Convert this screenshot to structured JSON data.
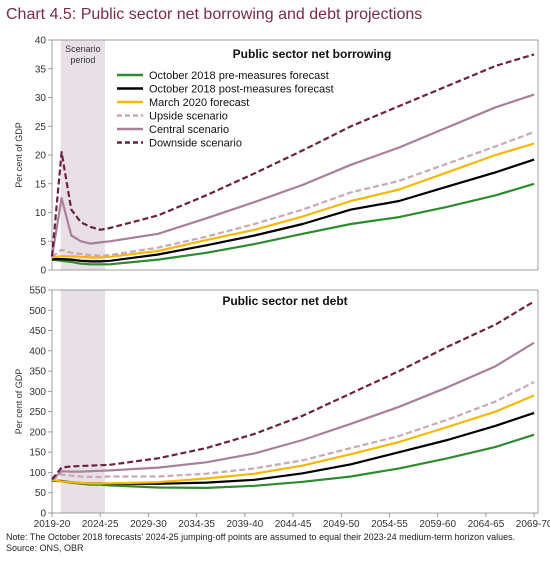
{
  "title": "Chart 4.5: Public sector net borrowing and debt projections",
  "note": "Note: The October 2018 forecasts' 2024-25 jumping-off points are assumed to equal their 2023-24 medium-term horizon values.",
  "source": "Source: ONS, OBR",
  "colors": {
    "title": "#7a2a4a",
    "shade": "#e8e0e6",
    "Oct2018pre": "#2e8b2e",
    "Oct2018post": "#000000",
    "Mar2020": "#f5b800",
    "upside": "#c9a8b8",
    "central": "#a8809a",
    "downside": "#6b2240"
  },
  "scenario_label": [
    "Scenario",
    "period"
  ],
  "x_tick_labels": [
    "2019-20",
    "2024-25",
    "2029-30",
    "2034-35",
    "2039-40",
    "2044-45",
    "2049-50",
    "2054-55",
    "2059-60",
    "2064-65",
    "2069-70"
  ],
  "chart_data": [
    {
      "type": "line",
      "title": "Public sector net borrowing",
      "ylabel": "Per cent of GDP",
      "ylim": [
        0,
        40
      ],
      "yticks": [
        0,
        5,
        10,
        15,
        20,
        25,
        30,
        35,
        40
      ],
      "x": [
        2019,
        2020,
        2021,
        2022,
        2023,
        2024,
        2025,
        2030,
        2035,
        2040,
        2045,
        2050,
        2055,
        2060,
        2065,
        2069
      ],
      "legend_position": "top-center",
      "series": [
        {
          "name": "October 2018 pre-measures forecast",
          "key": "Oct2018pre",
          "dash": false,
          "values": [
            1.8,
            1.6,
            1.4,
            1.1,
            1.0,
            1.0,
            1.0,
            1.8,
            3.0,
            4.5,
            6.3,
            8.0,
            9.2,
            11.0,
            13.0,
            15.0
          ]
        },
        {
          "name": "October 2018 post-measures forecast",
          "key": "Oct2018post",
          "dash": false,
          "values": [
            1.9,
            1.9,
            1.8,
            1.6,
            1.5,
            1.5,
            1.6,
            2.7,
            4.3,
            6.0,
            8.0,
            10.5,
            12.0,
            14.5,
            17.0,
            19.2
          ]
        },
        {
          "name": "March 2020 forecast",
          "key": "Mar2020",
          "dash": false,
          "values": [
            2.2,
            2.4,
            2.4,
            2.3,
            2.2,
            2.2,
            2.3,
            3.3,
            5.2,
            7.0,
            9.3,
            12.0,
            14.0,
            17.0,
            20.0,
            22.0
          ]
        },
        {
          "name": "Upside scenario",
          "key": "upside",
          "dash": true,
          "values": [
            2.3,
            3.5,
            3.0,
            2.8,
            2.6,
            2.5,
            2.6,
            3.9,
            5.8,
            8.0,
            10.5,
            13.5,
            15.5,
            18.5,
            21.5,
            24.0
          ]
        },
        {
          "name": "Central scenario",
          "key": "central",
          "dash": false,
          "values": [
            2.3,
            12.5,
            6.0,
            5.0,
            4.6,
            4.8,
            5.0,
            6.3,
            9.0,
            11.8,
            14.8,
            18.3,
            21.3,
            24.8,
            28.3,
            30.5
          ]
        },
        {
          "name": "Downside scenario",
          "key": "downside",
          "dash": true,
          "values": [
            2.4,
            20.5,
            10.5,
            8.3,
            7.5,
            7.0,
            7.3,
            9.5,
            13.0,
            16.8,
            20.8,
            25.0,
            28.5,
            32.0,
            35.5,
            37.5
          ]
        }
      ]
    },
    {
      "type": "line",
      "title": "Public sector net debt",
      "ylabel": "Per cent of GDP",
      "ylim": [
        0,
        550
      ],
      "yticks": [
        0,
        50,
        100,
        150,
        200,
        250,
        300,
        350,
        400,
        450,
        500,
        550
      ],
      "x": [
        2019,
        2020,
        2021,
        2022,
        2023,
        2024,
        2025,
        2030,
        2035,
        2040,
        2045,
        2050,
        2055,
        2060,
        2065,
        2069
      ],
      "series": [
        {
          "name": "October 2018 pre-measures forecast",
          "key": "Oct2018pre",
          "dash": false,
          "values": [
            80,
            78,
            75,
            72,
            70,
            70,
            68,
            63,
            62,
            67,
            77,
            90,
            110,
            135,
            163,
            193
          ]
        },
        {
          "name": "October 2018 post-measures forecast",
          "key": "Oct2018post",
          "dash": false,
          "values": [
            81,
            79,
            76,
            74,
            73,
            73,
            72,
            72,
            75,
            82,
            98,
            120,
            150,
            180,
            215,
            247
          ]
        },
        {
          "name": "March 2020 forecast",
          "key": "Mar2020",
          "dash": false,
          "values": [
            82,
            78,
            76,
            74,
            73,
            73,
            73,
            76,
            85,
            97,
            117,
            145,
            175,
            212,
            250,
            290
          ]
        },
        {
          "name": "Upside scenario",
          "key": "upside",
          "dash": true,
          "values": [
            82,
            95,
            92,
            90,
            89,
            89,
            90,
            90,
            97,
            110,
            130,
            160,
            190,
            230,
            275,
            323
          ]
        },
        {
          "name": "Central scenario",
          "key": "central",
          "dash": false,
          "values": [
            82,
            103,
            102,
            102,
            103,
            104,
            105,
            112,
            125,
            147,
            180,
            220,
            262,
            310,
            362,
            420
          ]
        },
        {
          "name": "Downside scenario",
          "key": "downside",
          "dash": true,
          "values": [
            83,
            112,
            115,
            116,
            117,
            118,
            119,
            135,
            160,
            195,
            240,
            295,
            350,
            410,
            465,
            522
          ]
        }
      ]
    }
  ]
}
